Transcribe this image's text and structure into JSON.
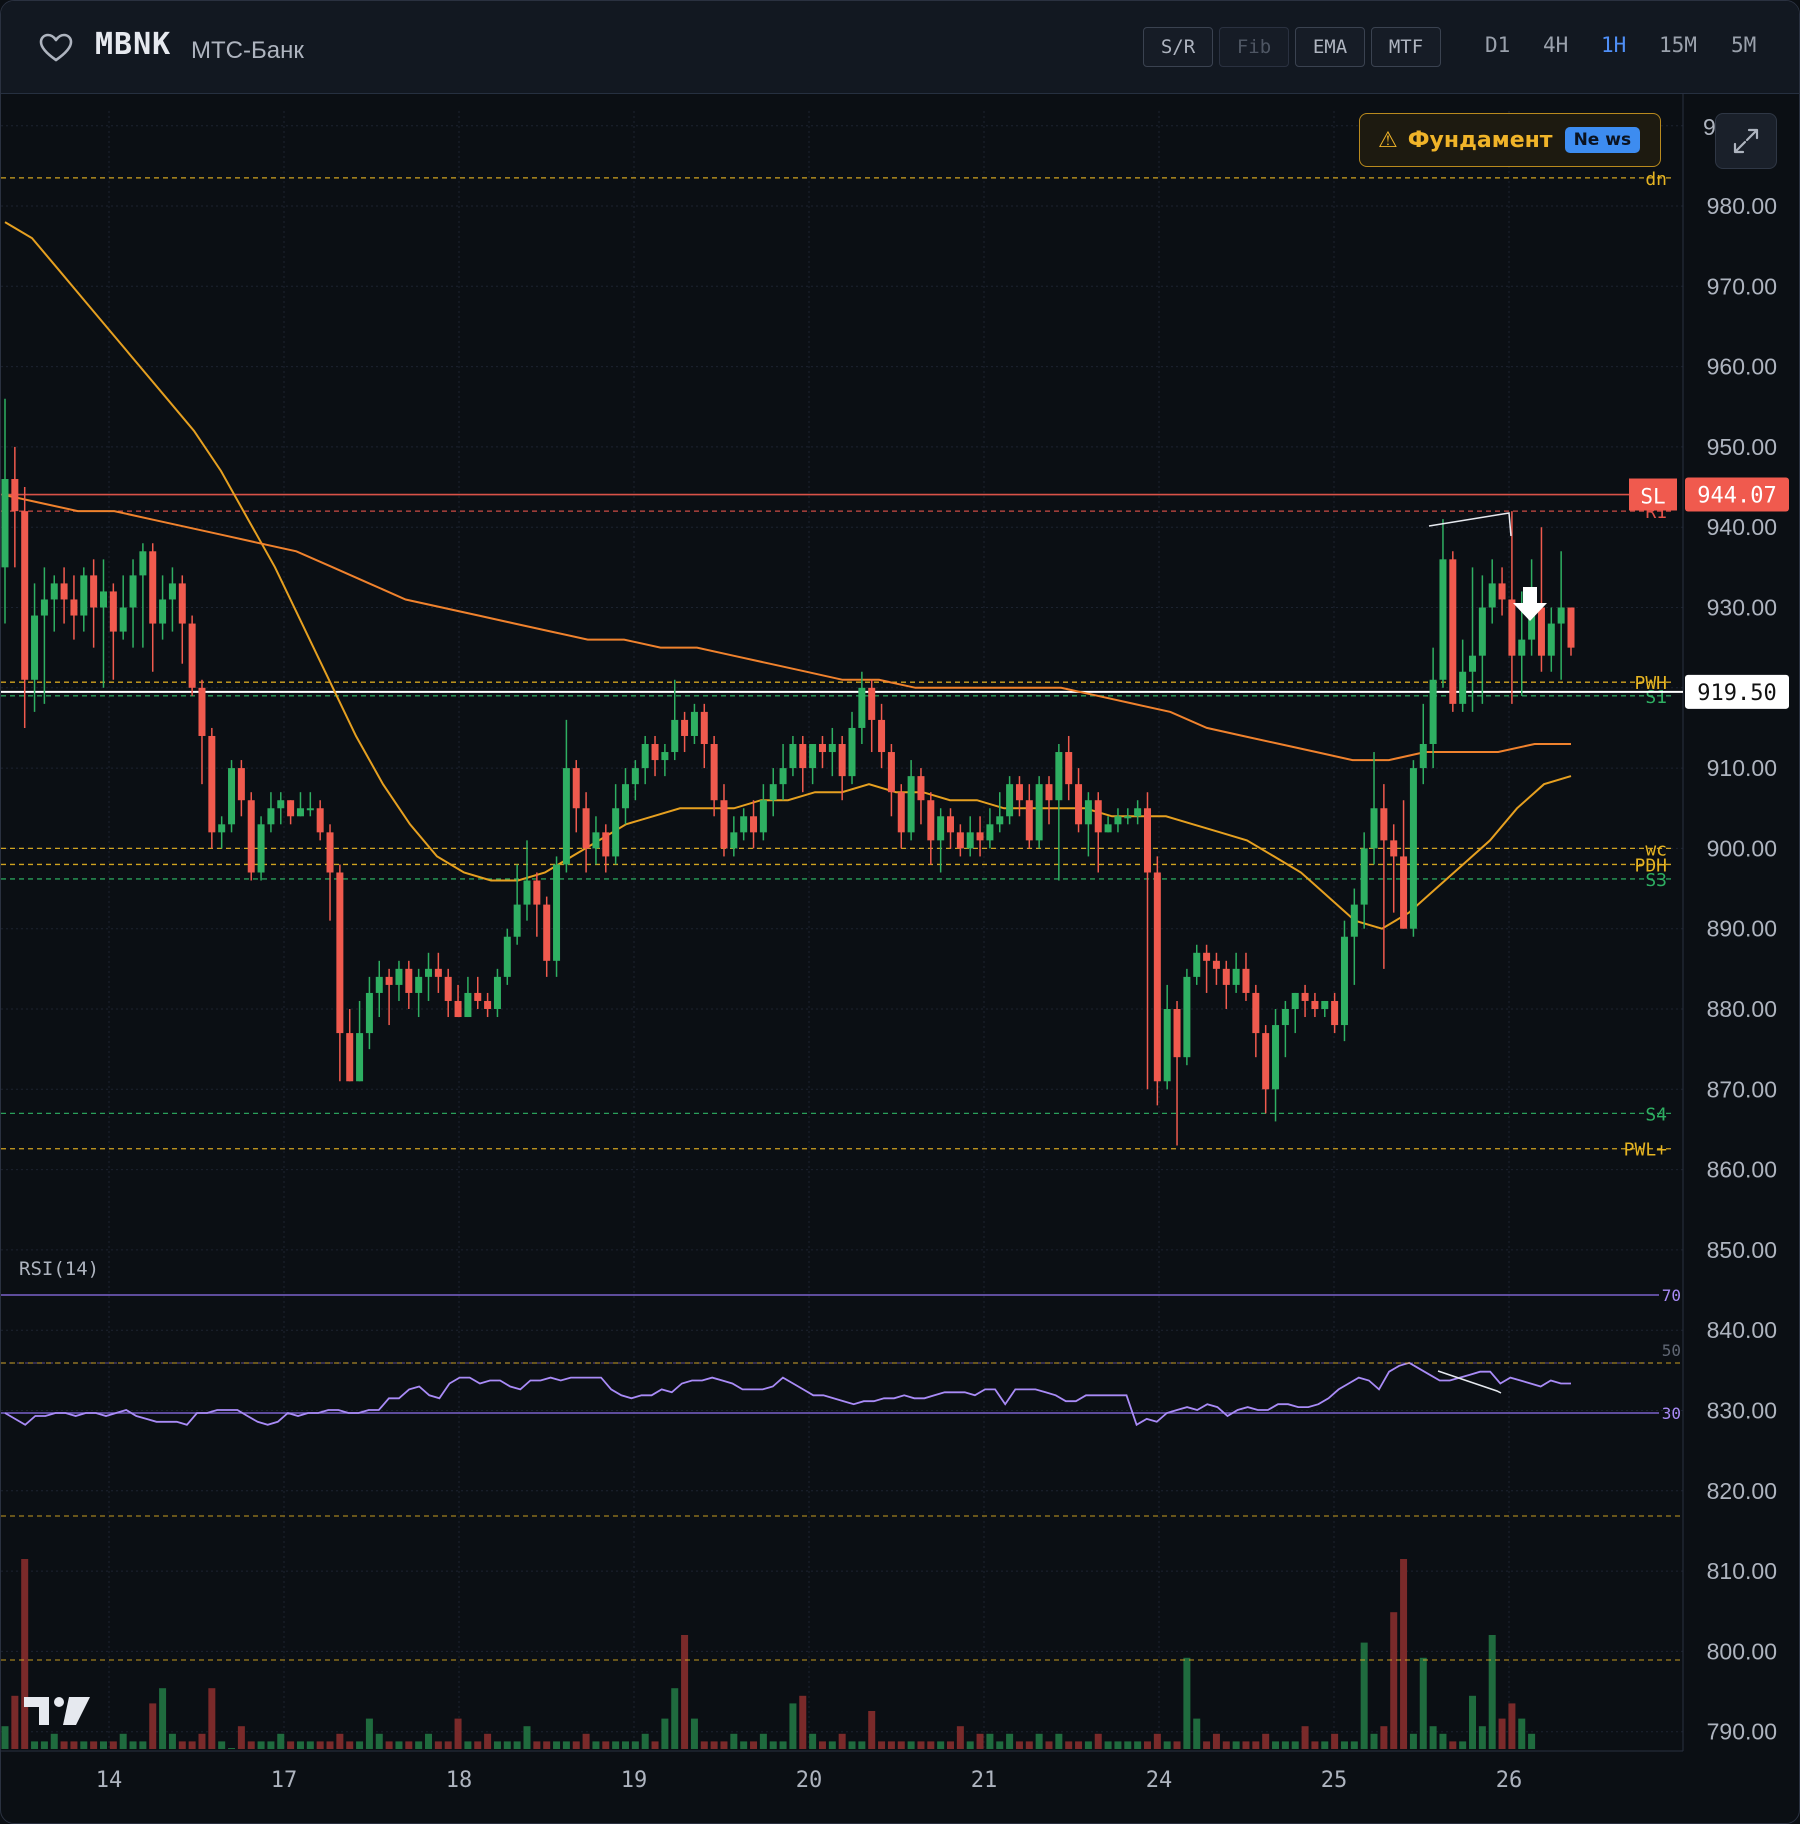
{
  "header": {
    "ticker": "MBNK",
    "company": "МТС-Банк",
    "tools": [
      {
        "label": "S/R",
        "enabled": true
      },
      {
        "label": "Fib",
        "enabled": false
      },
      {
        "label": "EMA",
        "enabled": true
      },
      {
        "label": "MTF",
        "enabled": true
      }
    ],
    "timeframes": [
      "D1",
      "4H",
      "1H",
      "15M",
      "5M"
    ],
    "active_timeframe": "1H"
  },
  "news_button": {
    "icon": "warning-icon",
    "label": "Фундамент",
    "badge": "Ne ws"
  },
  "price_axis": {
    "labels": [
      "980.00",
      "970.00",
      "960.00",
      "950.00",
      "940.00",
      "930.00",
      "920.00",
      "910.00",
      "900.00",
      "890.00",
      "880.00",
      "870.00",
      "860.00",
      "850.00",
      "840.00",
      "830.00",
      "820.00",
      "810.00",
      "800.00",
      "790.00"
    ],
    "top_clipped": "9"
  },
  "time_axis": {
    "labels": [
      "14",
      "17",
      "18",
      "19",
      "20",
      "21",
      "24",
      "25",
      "26"
    ]
  },
  "levels": [
    {
      "name": "dn",
      "price": 983.5,
      "color": "#e6b422"
    },
    {
      "name": "SL",
      "price": 944.07,
      "color": "#f05a4e"
    },
    {
      "name": "R1",
      "price": 942.0,
      "color": "#e0524a"
    },
    {
      "name": "PWH",
      "price": 920.7,
      "color": "#e6b422"
    },
    {
      "name": "S1",
      "price": 919.0,
      "color": "#2eaf62"
    },
    {
      "name": "wc",
      "price": 900.0,
      "color": "#e6b422"
    },
    {
      "name": "PDH",
      "price": 898.0,
      "color": "#e6b422"
    },
    {
      "name": "S3",
      "price": 896.2,
      "color": "#2eaf62"
    },
    {
      "name": "S4",
      "price": 867.0,
      "color": "#2eaf62"
    },
    {
      "name": "PWL+",
      "price": 862.6,
      "color": "#e6b422"
    }
  ],
  "price_tags": {
    "sl_tag": "SL",
    "sl_price": "944.07",
    "last_price": "919.50"
  },
  "rsi": {
    "title": "RSI(14)",
    "levels": [
      "70",
      "50",
      "30"
    ]
  },
  "colors": {
    "up": "#2eaf62",
    "down": "#f05a4e",
    "ema_fast": "#e6a020",
    "ema_slow": "#f0822d",
    "rsi": "#a98bf7",
    "accent": "#4f8ff7"
  },
  "chart_data": {
    "type": "candlestick",
    "x_labels": [
      "14",
      "17",
      "18",
      "19",
      "20",
      "21",
      "24",
      "25",
      "26"
    ],
    "y_range": [
      786,
      993
    ],
    "last_price": 919.5,
    "candles": [
      [
        935,
        946,
        956,
        928
      ],
      [
        946,
        942,
        950,
        935
      ],
      [
        942,
        921,
        945,
        915
      ],
      [
        921,
        929,
        933,
        917
      ],
      [
        929,
        931,
        935,
        918
      ],
      [
        931,
        933,
        934,
        927
      ],
      [
        933,
        931,
        935,
        928
      ],
      [
        931,
        929,
        934,
        926
      ],
      [
        929,
        934,
        935,
        927
      ],
      [
        934,
        930,
        936,
        925
      ],
      [
        930,
        932,
        936,
        920
      ],
      [
        932,
        927,
        933,
        921
      ],
      [
        927,
        930,
        934,
        926
      ],
      [
        930,
        934,
        936,
        925
      ],
      [
        934,
        937,
        938,
        925
      ],
      [
        937,
        928,
        938,
        922
      ],
      [
        928,
        931,
        934,
        926
      ],
      [
        931,
        933,
        935,
        927
      ],
      [
        933,
        928,
        934,
        923
      ],
      [
        928,
        920,
        929,
        919
      ],
      [
        920,
        914,
        921,
        908
      ],
      [
        914,
        902,
        915,
        900
      ],
      [
        902,
        903,
        904,
        900
      ],
      [
        903,
        910,
        911,
        902
      ],
      [
        910,
        906,
        911,
        904
      ],
      [
        906,
        897,
        907,
        896
      ],
      [
        897,
        903,
        904,
        896
      ],
      [
        903,
        905,
        907,
        902
      ],
      [
        905,
        906,
        907,
        903
      ],
      [
        906,
        904,
        906,
        903
      ],
      [
        904,
        905,
        907,
        904
      ],
      [
        905,
        905,
        907,
        904
      ],
      [
        905,
        902,
        906,
        901
      ],
      [
        902,
        897,
        903,
        891
      ],
      [
        897,
        877,
        898,
        871
      ],
      [
        877,
        871,
        880,
        871
      ],
      [
        871,
        877,
        881,
        871
      ],
      [
        877,
        882,
        884,
        875
      ],
      [
        882,
        884,
        886,
        879
      ],
      [
        884,
        883,
        885,
        878
      ],
      [
        883,
        885,
        886,
        881
      ],
      [
        885,
        882,
        886,
        880
      ],
      [
        882,
        884,
        885,
        879
      ],
      [
        884,
        885,
        887,
        881
      ],
      [
        885,
        884,
        887,
        882
      ],
      [
        884,
        881,
        885,
        879
      ],
      [
        881,
        879,
        883,
        879
      ],
      [
        879,
        882,
        884,
        879
      ],
      [
        882,
        881,
        884,
        880
      ],
      [
        881,
        880,
        882,
        879
      ],
      [
        880,
        884,
        885,
        879
      ],
      [
        884,
        889,
        890,
        883
      ],
      [
        889,
        893,
        898,
        888
      ],
      [
        893,
        896,
        901,
        891
      ],
      [
        896,
        893,
        897,
        889
      ],
      [
        893,
        886,
        894,
        884
      ],
      [
        886,
        898,
        899,
        884
      ],
      [
        898,
        910,
        916,
        897
      ],
      [
        910,
        905,
        911,
        902
      ],
      [
        905,
        900,
        907,
        897
      ],
      [
        900,
        902,
        904,
        898
      ],
      [
        902,
        899,
        903,
        897
      ],
      [
        899,
        905,
        908,
        898
      ],
      [
        905,
        908,
        910,
        903
      ],
      [
        908,
        910,
        911,
        906
      ],
      [
        910,
        913,
        914,
        908
      ],
      [
        913,
        911,
        914,
        909
      ],
      [
        911,
        912,
        913,
        909
      ],
      [
        912,
        916,
        921,
        911
      ],
      [
        916,
        914,
        917,
        912
      ],
      [
        914,
        917,
        918,
        913
      ],
      [
        917,
        913,
        918,
        910
      ],
      [
        913,
        906,
        914,
        904
      ],
      [
        906,
        900,
        908,
        899
      ],
      [
        900,
        902,
        904,
        899
      ],
      [
        902,
        904,
        905,
        901
      ],
      [
        904,
        902,
        906,
        900
      ],
      [
        902,
        906,
        908,
        901
      ],
      [
        906,
        908,
        910,
        904
      ],
      [
        908,
        910,
        913,
        906
      ],
      [
        910,
        913,
        914,
        909
      ],
      [
        913,
        910,
        914,
        907
      ],
      [
        910,
        913,
        913,
        908
      ],
      [
        913,
        912,
        914,
        910
      ],
      [
        912,
        913,
        915,
        909
      ],
      [
        913,
        909,
        914,
        906
      ],
      [
        909,
        915,
        917,
        908
      ],
      [
        915,
        920,
        922,
        913
      ],
      [
        920,
        916,
        921,
        912
      ],
      [
        916,
        912,
        918,
        910
      ],
      [
        912,
        907,
        913,
        904
      ],
      [
        907,
        902,
        908,
        900
      ],
      [
        902,
        909,
        911,
        901
      ],
      [
        909,
        906,
        910,
        903
      ],
      [
        906,
        901,
        907,
        898
      ],
      [
        901,
        904,
        905,
        897
      ],
      [
        904,
        902,
        905,
        900
      ],
      [
        902,
        900,
        903,
        899
      ],
      [
        900,
        902,
        904,
        899
      ],
      [
        902,
        901,
        904,
        899
      ],
      [
        901,
        903,
        905,
        900
      ],
      [
        903,
        904,
        907,
        902
      ],
      [
        904,
        908,
        909,
        903
      ],
      [
        908,
        906,
        909,
        904
      ],
      [
        906,
        901,
        908,
        900
      ],
      [
        901,
        908,
        909,
        900
      ],
      [
        908,
        906,
        909,
        903
      ],
      [
        906,
        912,
        913,
        896
      ],
      [
        912,
        908,
        914,
        906
      ],
      [
        908,
        903,
        910,
        902
      ],
      [
        903,
        906,
        907,
        899
      ],
      [
        906,
        902,
        907,
        897
      ],
      [
        902,
        903,
        904,
        902
      ],
      [
        903,
        904,
        905,
        902
      ],
      [
        904,
        904,
        905,
        903
      ],
      [
        904,
        905,
        906,
        903
      ],
      [
        905,
        897,
        907,
        870
      ],
      [
        897,
        871,
        899,
        868
      ],
      [
        871,
        880,
        883,
        870
      ],
      [
        880,
        874,
        881,
        863
      ],
      [
        874,
        884,
        885,
        873
      ],
      [
        884,
        887,
        888,
        883
      ],
      [
        887,
        886,
        888,
        882
      ],
      [
        886,
        885,
        887,
        883
      ],
      [
        885,
        883,
        886,
        880
      ],
      [
        883,
        885,
        887,
        882
      ],
      [
        885,
        882,
        887,
        881
      ],
      [
        882,
        877,
        883,
        874
      ],
      [
        877,
        870,
        878,
        867
      ],
      [
        870,
        878,
        880,
        866
      ],
      [
        878,
        880,
        881,
        874
      ],
      [
        880,
        882,
        882,
        877
      ],
      [
        882,
        881,
        883,
        879
      ],
      [
        881,
        880,
        882,
        879
      ],
      [
        880,
        881,
        881,
        879
      ],
      [
        881,
        878,
        882,
        877
      ],
      [
        878,
        889,
        891,
        876
      ],
      [
        889,
        893,
        895,
        883
      ],
      [
        893,
        900,
        902,
        890
      ],
      [
        900,
        905,
        912,
        898
      ],
      [
        905,
        901,
        908,
        885
      ],
      [
        901,
        899,
        903,
        892
      ],
      [
        899,
        890,
        906,
        890
      ],
      [
        890,
        910,
        911,
        889
      ],
      [
        910,
        913,
        918,
        908
      ],
      [
        913,
        921,
        925,
        910
      ],
      [
        921,
        936,
        941,
        920
      ],
      [
        936,
        918,
        937,
        917
      ],
      [
        918,
        922,
        926,
        917
      ],
      [
        922,
        924,
        935,
        917
      ],
      [
        924,
        930,
        934,
        918
      ],
      [
        930,
        933,
        936,
        928
      ],
      [
        933,
        931,
        935,
        929
      ],
      [
        931,
        924,
        942,
        918
      ],
      [
        924,
        926,
        932,
        919
      ],
      [
        926,
        930,
        936,
        924
      ],
      [
        930,
        924,
        940,
        922
      ],
      [
        924,
        928,
        930,
        922
      ],
      [
        928,
        930,
        937,
        921
      ],
      [
        930,
        925,
        930,
        924
      ]
    ],
    "volume": [
      3,
      7,
      25,
      1,
      1,
      2,
      1,
      1,
      1,
      1,
      1,
      1,
      2,
      1,
      1,
      6,
      8,
      2,
      1,
      1,
      2,
      8,
      1,
      0,
      3,
      1,
      1,
      1,
      2,
      1,
      1,
      1,
      1,
      1,
      2,
      1,
      1,
      4,
      2,
      1,
      1,
      1,
      1,
      2,
      1,
      1,
      4,
      1,
      1,
      2,
      1,
      1,
      1,
      3,
      1,
      1,
      1,
      1,
      1,
      2,
      1,
      1,
      1,
      1,
      1,
      2,
      1,
      4,
      8,
      15,
      4,
      1,
      1,
      1,
      2,
      1,
      1,
      2,
      1,
      1,
      6,
      7,
      2,
      1,
      1,
      2,
      1,
      1,
      5,
      1,
      1,
      1,
      1,
      1,
      1,
      1,
      1,
      3,
      1,
      2,
      2,
      1,
      2,
      1,
      1,
      2,
      1,
      2,
      1,
      1,
      1,
      2,
      1,
      1,
      1,
      1,
      1,
      2,
      1,
      1,
      12,
      4,
      1,
      2,
      1,
      1,
      1,
      1,
      2,
      1,
      1,
      1,
      3,
      1,
      1,
      2,
      1,
      1,
      14,
      2,
      3,
      18,
      25,
      2,
      12,
      3,
      2,
      1,
      1,
      7,
      3,
      15,
      4,
      6,
      4,
      2
    ],
    "rsi": [
      30,
      28,
      26,
      29,
      29,
      30,
      30,
      29,
      30,
      30,
      29,
      30,
      31,
      29,
      28,
      27,
      27,
      27,
      26,
      30,
      30,
      31,
      31,
      31,
      29,
      27,
      26,
      27,
      30,
      29,
      30,
      30,
      31,
      31,
      30,
      30,
      31,
      31,
      35,
      35,
      38,
      39,
      36,
      35,
      40,
      42,
      42,
      40,
      41,
      41,
      39,
      38,
      41,
      41,
      42,
      41,
      42,
      42,
      42,
      42,
      38,
      36,
      35,
      36,
      36,
      38,
      37,
      40,
      41,
      41,
      42,
      41,
      40,
      38,
      38,
      38,
      39,
      42,
      40,
      38,
      36,
      36,
      35,
      34,
      33,
      34,
      34,
      35,
      35,
      36,
      35,
      35,
      36,
      37,
      37,
      37,
      36,
      38,
      38,
      33,
      38,
      38,
      38,
      37,
      36,
      34,
      34,
      36,
      36,
      36,
      36,
      36,
      26,
      28,
      27,
      30,
      31,
      32,
      31,
      33,
      32,
      29,
      31,
      32,
      31,
      31,
      33,
      33,
      32,
      32,
      33,
      35,
      38,
      40,
      42,
      41,
      38,
      44,
      46,
      47,
      45,
      43,
      41,
      41,
      42,
      43,
      44,
      44,
      40,
      42,
      41,
      40,
      39,
      41,
      40,
      40
    ],
    "ema_fast": [
      978,
      976,
      972,
      968,
      964,
      960,
      956,
      952,
      947,
      941,
      935,
      928,
      921,
      914,
      908,
      903,
      899,
      897,
      896,
      896,
      897,
      899,
      901,
      903,
      904,
      905,
      905,
      905,
      906,
      906,
      907,
      907,
      908,
      907,
      907,
      906,
      906,
      905,
      905,
      905,
      905,
      904,
      904,
      904,
      903,
      902,
      901,
      899,
      897,
      894,
      891,
      890,
      892,
      895,
      898,
      901,
      905,
      908,
      909
    ],
    "ema_slow": [
      944,
      943,
      942,
      942,
      941,
      940,
      939,
      938,
      937,
      935,
      933,
      931,
      930,
      929,
      928,
      927,
      926,
      926,
      925,
      925,
      924,
      923,
      922,
      921,
      921,
      920,
      920,
      920,
      920,
      920,
      919,
      918,
      917,
      915,
      914,
      913,
      912,
      911,
      911,
      912,
      912,
      912,
      913,
      913
    ]
  }
}
